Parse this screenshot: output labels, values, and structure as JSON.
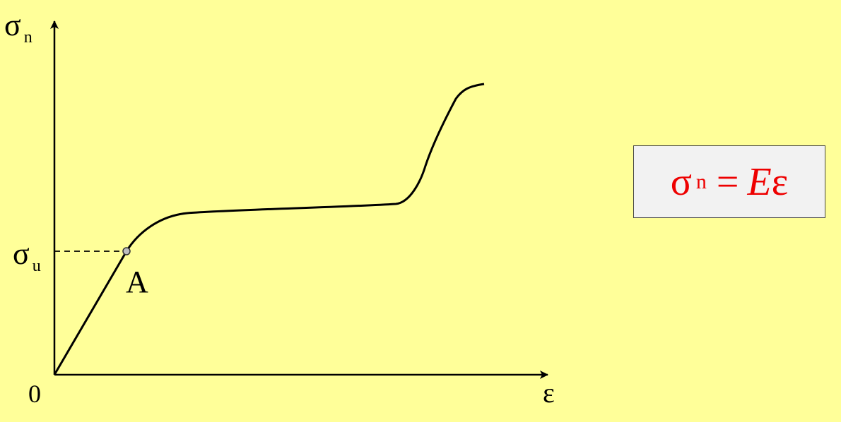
{
  "axes": {
    "y_symbol": "σ",
    "y_subscript": "n",
    "x_symbol": "ε",
    "origin": "0"
  },
  "markers": {
    "yield_symbol": "σ",
    "yield_subscript": "u",
    "point_label": "A"
  },
  "formula": {
    "lhs": "σ",
    "lhs_subscript": "n",
    "equals": "=",
    "coefficient": "E",
    "variable": "ε"
  },
  "colors": {
    "background": "#ffff99",
    "formula_text": "#ee0000",
    "formula_box": "#f2f2f2",
    "curve": "#000000"
  }
}
